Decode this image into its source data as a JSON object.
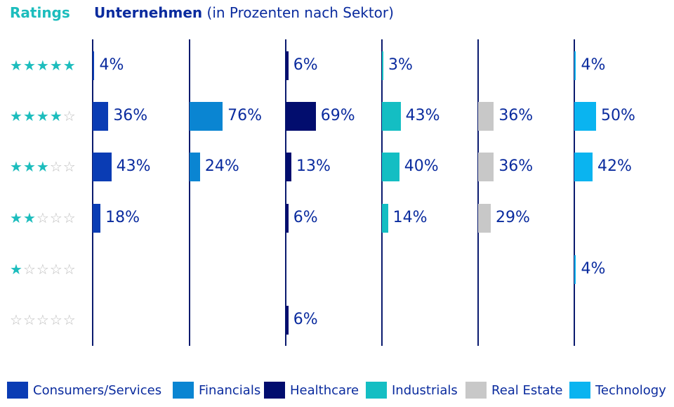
{
  "header": {
    "ratings_label": "Ratings",
    "title_bold": "Unternehmen",
    "title_rest": " (in Prozenten nach Sektor)"
  },
  "colors": {
    "accent_teal": "#1cbdbd",
    "title_blue": "#0a2b9e",
    "axis": "#0a1a6e",
    "star_empty": "#bfbfbf"
  },
  "ratings": [
    {
      "filled": 5,
      "empty": 0
    },
    {
      "filled": 4,
      "empty": 1
    },
    {
      "filled": 3,
      "empty": 2
    },
    {
      "filled": 2,
      "empty": 3
    },
    {
      "filled": 1,
      "empty": 4
    },
    {
      "filled": 0,
      "empty": 5
    }
  ],
  "chart_data": {
    "type": "bar",
    "title": "Unternehmen (in Prozenten nach Sektor)",
    "categories": [
      "5 Sterne",
      "4 Sterne",
      "3 Sterne",
      "2 Sterne",
      "1 Stern",
      "0 Sterne"
    ],
    "unit": "%",
    "series": [
      {
        "name": "Consumers/Services",
        "color": "#0a3cb4",
        "values": [
          4,
          36,
          43,
          18,
          null,
          null
        ]
      },
      {
        "name": "Financials",
        "color": "#0a85d2",
        "values": [
          null,
          76,
          24,
          null,
          null,
          null
        ]
      },
      {
        "name": "Healthcare",
        "color": "#020d6e",
        "values": [
          6,
          69,
          13,
          6,
          null,
          6
        ]
      },
      {
        "name": "Industrials",
        "color": "#14bec3",
        "values": [
          3,
          43,
          40,
          14,
          null,
          null
        ]
      },
      {
        "name": "Real Estate",
        "color": "#c8c8c8",
        "values": [
          null,
          36,
          36,
          29,
          null,
          null
        ]
      },
      {
        "name": "Technology",
        "color": "#0ab4f0",
        "values": [
          4,
          50,
          42,
          null,
          4,
          null
        ]
      }
    ],
    "legend_position": "bottom"
  }
}
